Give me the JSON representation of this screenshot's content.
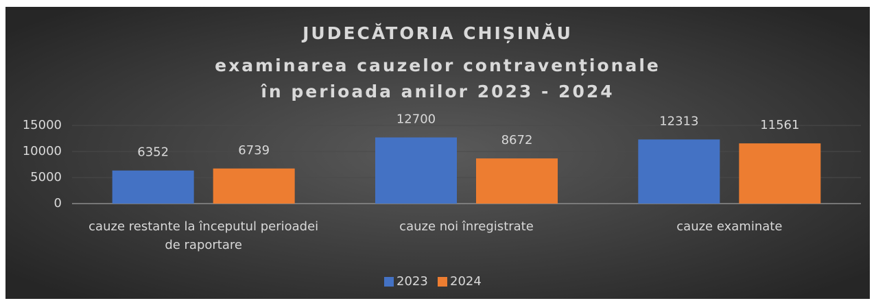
{
  "chart_data": {
    "type": "bar",
    "title": [
      "JUDECĂTORIA CHIȘINĂU",
      "examinarea cauzelor contravenționale",
      "în perioada anilor 2023 - 2024"
    ],
    "categories": [
      "cauze restante la începutul perioadei de raportare",
      "cauze noi înregistrate",
      "cauze examinate"
    ],
    "series": [
      {
        "name": "2023",
        "color": "#4472c4",
        "values": [
          6352,
          12700,
          12313
        ]
      },
      {
        "name": "2024",
        "color": "#ed7d31",
        "values": [
          6739,
          8672,
          11561
        ]
      }
    ],
    "ylim": [
      0,
      15000
    ],
    "yticks": [
      0,
      5000,
      10000,
      15000
    ],
    "grid": true,
    "legend": "bottom"
  }
}
